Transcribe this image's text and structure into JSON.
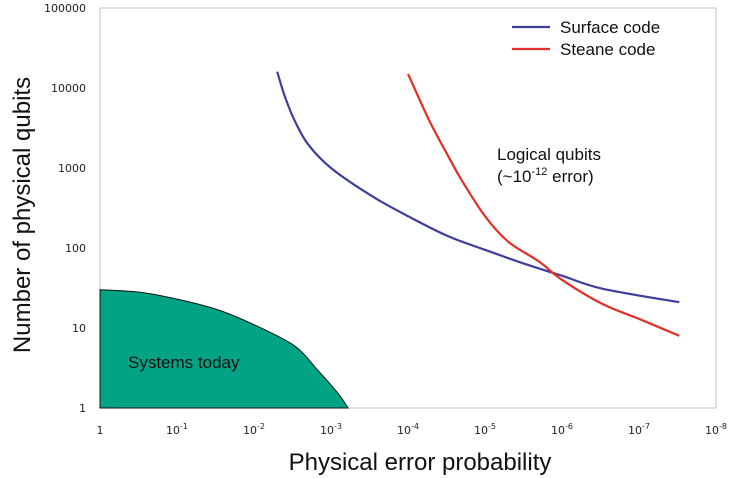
{
  "chart_data": {
    "type": "line",
    "xlabel": "Physical error probability",
    "ylabel": "Number of physical qubits",
    "x_scale": "log (decreasing)",
    "y_scale": "log",
    "xlim": [
      1,
      1e-08
    ],
    "ylim": [
      1,
      100000
    ],
    "grid": false,
    "legend_position": "top-right",
    "x_ticks": [
      {
        "base": "1",
        "exp": ""
      },
      {
        "base": "10",
        "exp": "-1"
      },
      {
        "base": "10",
        "exp": "-2"
      },
      {
        "base": "10",
        "exp": "-3"
      },
      {
        "base": "10",
        "exp": "-4"
      },
      {
        "base": "10",
        "exp": "-5"
      },
      {
        "base": "10",
        "exp": "-6"
      },
      {
        "base": "10",
        "exp": "-7"
      },
      {
        "base": "10",
        "exp": "-8"
      }
    ],
    "y_ticks": [
      "1",
      "10",
      "100",
      "1000",
      "10000",
      "100000"
    ],
    "series": [
      {
        "name": "Surface code",
        "color": "#3d3f9b",
        "points": [
          [
            0.005,
            16000
          ],
          [
            0.004,
            8000
          ],
          [
            0.003,
            4000
          ],
          [
            0.002,
            2000
          ],
          [
            0.001,
            1000
          ],
          [
            0.0003,
            450
          ],
          [
            0.0001,
            250
          ],
          [
            3e-05,
            140
          ],
          [
            1e-05,
            95
          ],
          [
            3e-06,
            63
          ],
          [
            1e-06,
            45
          ],
          [
            3e-07,
            31
          ],
          [
            3e-08,
            21
          ]
        ]
      },
      {
        "name": "Steane code",
        "color": "#e03028",
        "points": [
          [
            0.0001,
            15000
          ],
          [
            7e-05,
            7000
          ],
          [
            5e-05,
            3500
          ],
          [
            3e-05,
            1400
          ],
          [
            2e-05,
            700
          ],
          [
            1e-05,
            250
          ],
          [
            5e-06,
            120
          ],
          [
            2e-06,
            68
          ],
          [
            1e-06,
            40
          ],
          [
            3e-07,
            20
          ],
          [
            1e-07,
            13
          ],
          [
            3e-08,
            8
          ]
        ]
      }
    ],
    "region": {
      "label": "Systems today",
      "color": "#00a383",
      "boundary": [
        [
          1,
          30
        ],
        [
          0.3,
          28
        ],
        [
          0.1,
          23
        ],
        [
          0.03,
          17
        ],
        [
          0.01,
          11
        ],
        [
          0.003,
          6
        ],
        [
          0.0015,
          3
        ],
        [
          0.0008,
          1.5
        ],
        [
          0.0006,
          1
        ]
      ]
    },
    "annotation": {
      "line1": "Logical qubits",
      "line2_prefix": "(~10",
      "line2_exp": "-12",
      "line2_suffix": " error)"
    }
  }
}
